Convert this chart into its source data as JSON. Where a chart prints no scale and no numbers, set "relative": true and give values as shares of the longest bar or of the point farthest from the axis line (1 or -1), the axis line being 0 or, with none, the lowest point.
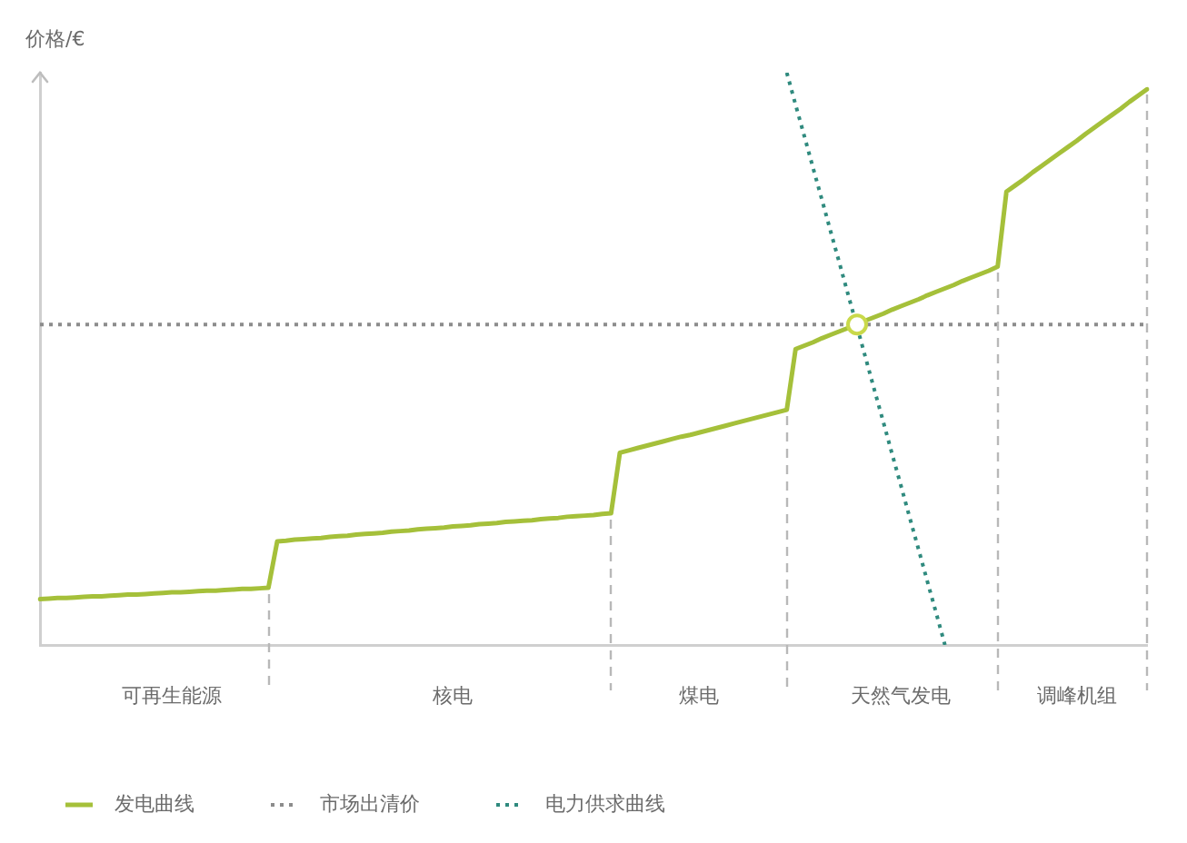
{
  "chart_data": {
    "type": "line",
    "relative": true,
    "ylabel": "价格/€",
    "legend": "bottom",
    "categories": [
      null,
      null,
      null,
      null,
      null,
      null,
      null,
      null,
      null,
      null,
      null,
      null,
      null,
      null,
      null,
      "可再生能源",
      null,
      null,
      null,
      null,
      null,
      null,
      null,
      null,
      null,
      null,
      null,
      null,
      null,
      null,
      null,
      null,
      null,
      null,
      null,
      null,
      null,
      null,
      null,
      null,
      null,
      null,
      null,
      null,
      null,
      null,
      null,
      "核电",
      null,
      null,
      null,
      null,
      null,
      null,
      null,
      null,
      null,
      null,
      null,
      null,
      null,
      null,
      null,
      null,
      null,
      null,
      null,
      null,
      null,
      null,
      null,
      null,
      null,
      null,
      null,
      "煤电",
      null,
      null,
      null,
      null,
      null,
      null,
      null,
      null,
      null,
      null,
      null,
      null,
      null,
      null,
      null,
      null,
      null,
      null,
      null,
      null,
      null,
      null,
      "天然气发电",
      null,
      null,
      null,
      null,
      null,
      null,
      null,
      null,
      null,
      null,
      null,
      null,
      null,
      null,
      null,
      null,
      null,
      null,
      null,
      "调峰机组",
      null,
      null,
      null,
      null,
      null,
      null,
      null,
      null
    ],
    "series": [
      {
        "name": "发电曲线",
        "color": "#a5c03a",
        "line_style": "solid",
        "values": [
          0.08,
          0.081,
          0.082,
          0.082,
          0.083,
          0.084,
          0.085,
          0.085,
          0.086,
          0.087,
          0.088,
          0.088,
          0.089,
          0.09,
          0.091,
          0.092,
          0.092,
          0.093,
          0.094,
          0.095,
          0.095,
          0.096,
          0.097,
          0.098,
          0.098,
          0.099,
          0.1,
          0.181,
          0.182,
          0.184,
          0.185,
          0.186,
          0.187,
          0.189,
          0.19,
          0.191,
          0.193,
          0.194,
          0.195,
          0.196,
          0.198,
          0.199,
          0.2,
          0.202,
          0.203,
          0.204,
          0.205,
          0.207,
          0.208,
          0.209,
          0.211,
          0.212,
          0.213,
          0.215,
          0.216,
          0.217,
          0.218,
          0.22,
          0.221,
          0.222,
          0.224,
          0.225,
          0.226,
          0.227,
          0.229,
          0.23,
          0.336,
          0.34,
          0.344,
          0.348,
          0.352,
          0.356,
          0.36,
          0.364,
          0.367,
          0.371,
          0.375,
          0.379,
          0.383,
          0.387,
          0.391,
          0.395,
          0.399,
          0.403,
          0.407,
          0.411,
          0.517,
          0.523,
          0.529,
          0.536,
          0.542,
          0.548,
          0.554,
          0.561,
          0.567,
          0.573,
          0.579,
          0.586,
          0.592,
          0.598,
          0.604,
          0.611,
          0.617,
          0.623,
          0.629,
          0.636,
          0.642,
          0.648,
          0.654,
          0.661,
          0.792,
          0.803,
          0.814,
          0.826,
          0.837,
          0.848,
          0.859,
          0.87,
          0.881,
          0.893,
          0.904,
          0.915,
          0.926,
          0.937,
          0.949,
          0.96,
          0.971
        ]
      },
      {
        "name": "市场出清价",
        "color": "#8c8c8c",
        "line_style": "dotted",
        "values": [
          0.56,
          0.56,
          0.56,
          0.56,
          0.56,
          0.56,
          0.56,
          0.56,
          0.56,
          0.56,
          0.56,
          0.56,
          0.56,
          0.56,
          0.56,
          0.56,
          0.56,
          0.56,
          0.56,
          0.56,
          0.56,
          0.56,
          0.56,
          0.56,
          0.56,
          0.56,
          0.56,
          0.56,
          0.56,
          0.56,
          0.56,
          0.56,
          0.56,
          0.56,
          0.56,
          0.56,
          0.56,
          0.56,
          0.56,
          0.56,
          0.56,
          0.56,
          0.56,
          0.56,
          0.56,
          0.56,
          0.56,
          0.56,
          0.56,
          0.56,
          0.56,
          0.56,
          0.56,
          0.56,
          0.56,
          0.56,
          0.56,
          0.56,
          0.56,
          0.56,
          0.56,
          0.56,
          0.56,
          0.56,
          0.56,
          0.56,
          0.56,
          0.56,
          0.56,
          0.56,
          0.56,
          0.56,
          0.56,
          0.56,
          0.56,
          0.56,
          0.56,
          0.56,
          0.56,
          0.56,
          0.56,
          0.56,
          0.56,
          0.56,
          0.56,
          0.56,
          0.56,
          0.56,
          0.56,
          0.56,
          0.56,
          0.56,
          0.56,
          0.56,
          0.56,
          0.56,
          0.56,
          0.56,
          0.56,
          0.56,
          0.56,
          0.56,
          0.56,
          0.56,
          0.56,
          0.56,
          0.56,
          0.56,
          0.56,
          0.56,
          0.56,
          0.56,
          0.56,
          0.56,
          0.56,
          0.56,
          0.56,
          0.56,
          0.56,
          0.56,
          0.56,
          0.56,
          0.56,
          0.56,
          0.56,
          0.56,
          0.56
        ]
      },
      {
        "name": "电力供求曲线",
        "color": "#2f8a7e",
        "line_style": "dotted",
        "values": [
          null,
          null,
          null,
          null,
          null,
          null,
          null,
          null,
          null,
          null,
          null,
          null,
          null,
          null,
          null,
          null,
          null,
          null,
          null,
          null,
          null,
          null,
          null,
          null,
          null,
          null,
          null,
          null,
          null,
          null,
          null,
          null,
          null,
          null,
          null,
          null,
          null,
          null,
          null,
          null,
          null,
          null,
          null,
          null,
          null,
          null,
          null,
          null,
          null,
          null,
          null,
          null,
          null,
          null,
          null,
          null,
          null,
          null,
          null,
          null,
          null,
          null,
          null,
          null,
          null,
          null,
          null,
          null,
          null,
          null,
          null,
          null,
          null,
          null,
          null,
          null,
          null,
          null,
          null,
          null,
          null,
          null,
          null,
          null,
          null,
          1,
          0.944,
          0.889,
          0.833,
          0.778,
          0.722,
          0.667,
          0.611,
          0.556,
          0.5,
          0.444,
          0.389,
          0.333,
          0.278,
          0.222,
          0.167,
          0.111,
          0.056,
          0,
          null,
          null,
          null,
          null,
          null,
          null,
          null,
          null,
          null,
          null,
          null,
          null,
          null,
          null,
          null,
          null,
          null,
          null,
          null,
          null,
          null,
          null,
          null
        ]
      },
      {
        "type": "scatter",
        "color": "#c9d94a",
        "marker": "circle",
        "values": [
          null,
          null,
          null,
          null,
          null,
          null,
          null,
          null,
          null,
          null,
          null,
          null,
          null,
          null,
          null,
          null,
          null,
          null,
          null,
          null,
          null,
          null,
          null,
          null,
          null,
          null,
          null,
          null,
          null,
          null,
          null,
          null,
          null,
          null,
          null,
          null,
          null,
          null,
          null,
          null,
          null,
          null,
          null,
          null,
          null,
          null,
          null,
          null,
          null,
          null,
          null,
          null,
          null,
          null,
          null,
          null,
          null,
          null,
          null,
          null,
          null,
          null,
          null,
          null,
          null,
          null,
          null,
          null,
          null,
          null,
          null,
          null,
          null,
          null,
          null,
          null,
          null,
          null,
          null,
          null,
          null,
          null,
          null,
          null,
          null,
          null,
          null,
          null,
          null,
          null,
          null,
          null,
          null,
          0.56,
          null,
          null,
          null,
          null,
          null,
          null,
          null,
          null,
          null,
          null,
          null,
          null,
          null,
          null,
          null,
          null,
          null,
          null,
          null,
          null,
          null,
          null,
          null,
          null,
          null,
          null,
          null,
          null,
          null,
          null,
          null,
          null,
          null
        ]
      }
    ]
  }
}
